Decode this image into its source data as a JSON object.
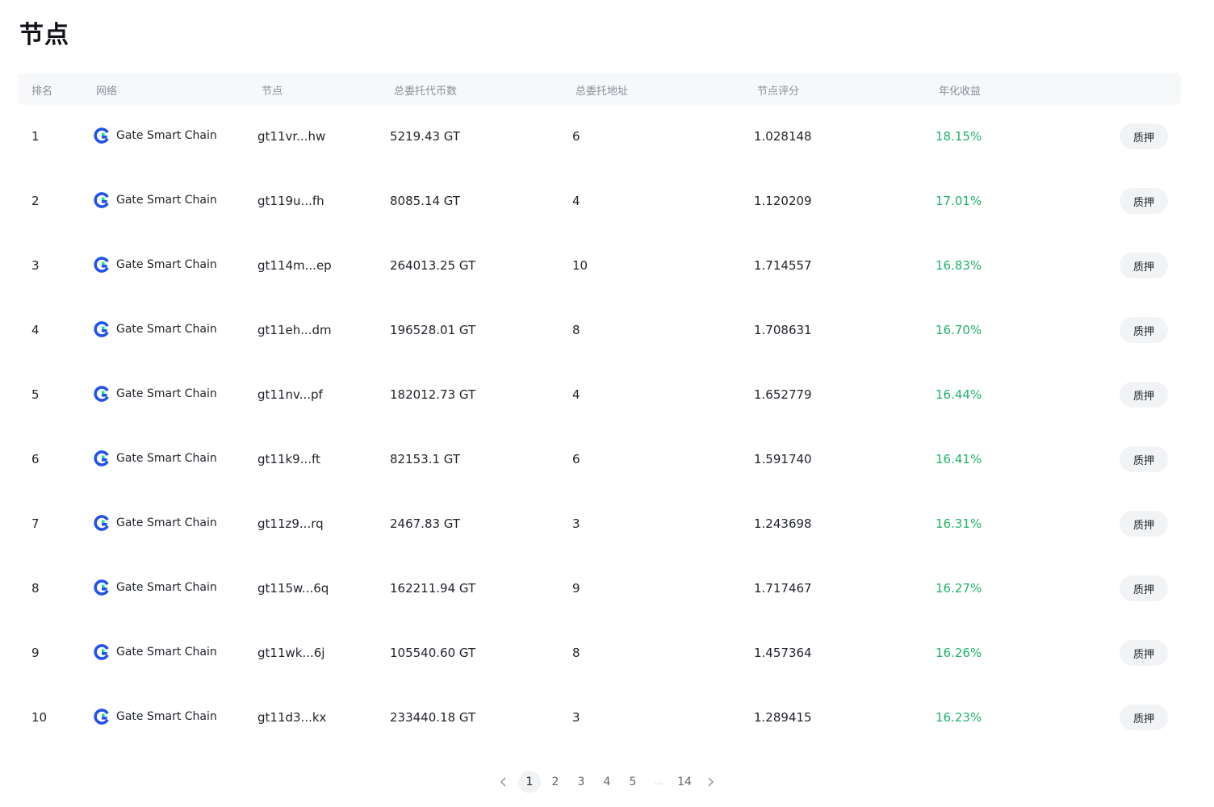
{
  "title": "节点",
  "columns": [
    "排名",
    "网络",
    "节点",
    "总委托代币数",
    "总委托地址",
    "节点评分",
    "年化收益"
  ],
  "rows": [
    {
      "rank": "1",
      "network": "Gate Smart Chain",
      "node": "gt11vr...hw",
      "amount": "5219.43 GT",
      "addresses": "6",
      "score": "1.028148",
      "apr": "18.15%",
      "action": "质押"
    },
    {
      "rank": "2",
      "network": "Gate Smart Chain",
      "node": "gt119u...fh",
      "amount": "8085.14 GT",
      "addresses": "4",
      "score": "1.120209",
      "apr": "17.01%",
      "action": "质押"
    },
    {
      "rank": "3",
      "network": "Gate Smart Chain",
      "node": "gt114m...ep",
      "amount": "264013.25 GT",
      "addresses": "10",
      "score": "1.714557",
      "apr": "16.83%",
      "action": "质押"
    },
    {
      "rank": "4",
      "network": "Gate Smart Chain",
      "node": "gt11eh...dm",
      "amount": "196528.01 GT",
      "addresses": "8",
      "score": "1.708631",
      "apr": "16.70%",
      "action": "质押"
    },
    {
      "rank": "5",
      "network": "Gate Smart Chain",
      "node": "gt11nv...pf",
      "amount": "182012.73 GT",
      "addresses": "4",
      "score": "1.652779",
      "apr": "16.44%",
      "action": "质押"
    },
    {
      "rank": "6",
      "network": "Gate Smart Chain",
      "node": "gt11k9...ft",
      "amount": "82153.1 GT",
      "addresses": "6",
      "score": "1.591740",
      "apr": "16.41%",
      "action": "质押"
    },
    {
      "rank": "7",
      "network": "Gate Smart Chain",
      "node": "gt11z9...rq",
      "amount": "2467.83 GT",
      "addresses": "3",
      "score": "1.243698",
      "apr": "16.31%",
      "action": "质押"
    },
    {
      "rank": "8",
      "network": "Gate Smart Chain",
      "node": "gt115w...6q",
      "amount": "162211.94 GT",
      "addresses": "9",
      "score": "1.717467",
      "apr": "16.27%",
      "action": "质押"
    },
    {
      "rank": "9",
      "network": "Gate Smart Chain",
      "node": "gt11wk...6j",
      "amount": "105540.60 GT",
      "addresses": "8",
      "score": "1.457364",
      "apr": "16.26%",
      "action": "质押"
    },
    {
      "rank": "10",
      "network": "Gate Smart Chain",
      "node": "gt11d3...kx",
      "amount": "233440.18 GT",
      "addresses": "3",
      "score": "1.289415",
      "apr": "16.23%",
      "action": "质押"
    }
  ],
  "pagination": {
    "current": "1",
    "pages": [
      "1",
      "2",
      "3",
      "4",
      "5"
    ],
    "ellipsis": "...",
    "last": "14",
    "prev_icon": "chevron-left-icon",
    "next_icon": "chevron-right-icon"
  },
  "colors": {
    "apr": "#20b26c",
    "header_bg": "#f7f8fa",
    "button_bg": "#f2f3f5",
    "logo_blue": "#2354e6",
    "logo_green": "#17e6a1"
  },
  "network_icon": "gate-chain-logo-icon"
}
